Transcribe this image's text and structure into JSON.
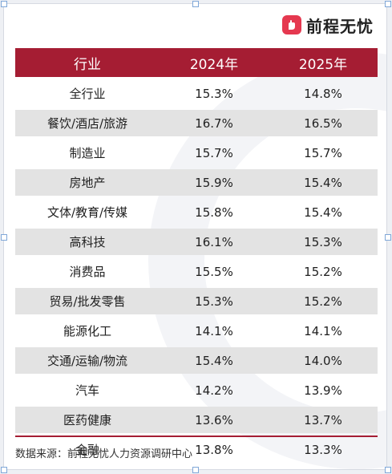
{
  "brand": {
    "name": "前程无忧",
    "accent": "#a51d33",
    "logo_color": "#e5384f"
  },
  "table": {
    "headers": [
      "行业",
      "2024年",
      "2025年"
    ],
    "rows": [
      [
        "全行业",
        "15.3%",
        "14.8%"
      ],
      [
        "餐饮/酒店/旅游",
        "16.7%",
        "16.5%"
      ],
      [
        "制造业",
        "15.7%",
        "15.7%"
      ],
      [
        "房地产",
        "15.9%",
        "15.4%"
      ],
      [
        "文体/教育/传媒",
        "15.8%",
        "15.4%"
      ],
      [
        "高科技",
        "16.1%",
        "15.3%"
      ],
      [
        "消费品",
        "15.5%",
        "15.2%"
      ],
      [
        "贸易/批发零售",
        "15.3%",
        "15.2%"
      ],
      [
        "能源化工",
        "14.1%",
        "14.1%"
      ],
      [
        "交通/运输/物流",
        "15.4%",
        "14.0%"
      ],
      [
        "汽车",
        "14.2%",
        "13.9%"
      ],
      [
        "医药健康",
        "13.6%",
        "13.7%"
      ],
      [
        "金融",
        "13.8%",
        "13.3%"
      ]
    ]
  },
  "source_note": "数据来源：前程无忧人力资源调研中心"
}
